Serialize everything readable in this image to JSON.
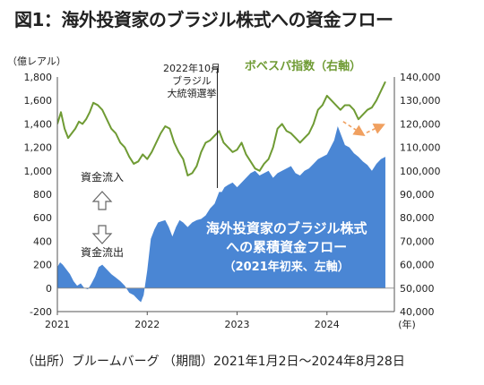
{
  "title": "図1：海外投資家のブラジル株式への資金フロー",
  "source_note": "（出所）ブルームバーグ （期間）2021年1月2日～2024年8月28日",
  "colors": {
    "area": "#4a86d4",
    "line": "#6f9b34",
    "bovespa_label": "#6f9b34",
    "arrow": "#f0a060",
    "area_text": "#ffffff"
  },
  "chart_data": {
    "type": "area",
    "title": "図1：海外投資家のブラジル株式への資金フロー",
    "xlabel": "(年)",
    "x_ticks": [
      "2021",
      "2022",
      "2023",
      "2024"
    ],
    "x_range": [
      2021.0,
      2024.75
    ],
    "left_axis": {
      "unit_label": "（億レアル）",
      "range": [
        -200,
        1800
      ],
      "ticks": [
        "-200",
        "0",
        "200",
        "400",
        "600",
        "800",
        "1,000",
        "1,200",
        "1,400",
        "1,600",
        "1,800"
      ]
    },
    "right_axis": {
      "range": [
        40000,
        140000
      ],
      "ticks": [
        "40,000",
        "50,000",
        "60,000",
        "70,000",
        "80,000",
        "90,000",
        "100,000",
        "110,000",
        "120,000",
        "130,000",
        "140,000"
      ]
    },
    "grid": false,
    "series": [
      {
        "name": "海外投資家のブラジル株式への累積資金フロー（2021年初来、左軸）",
        "axis": "left",
        "style": "area",
        "label_lines": [
          "海外投資家のブラジル株式",
          "への累積資金フロー",
          "（2021年初来、左軸）"
        ],
        "x": [
          2021.0,
          2021.03,
          2021.06,
          2021.1,
          2021.14,
          2021.18,
          2021.22,
          2021.26,
          2021.3,
          2021.34,
          2021.38,
          2021.42,
          2021.46,
          2021.5,
          2021.55,
          2021.6,
          2021.65,
          2021.7,
          2021.75,
          2021.8,
          2021.85,
          2021.9,
          2021.93,
          2021.96,
          2022.0,
          2022.04,
          2022.08,
          2022.12,
          2022.16,
          2022.2,
          2022.24,
          2022.28,
          2022.32,
          2022.36,
          2022.4,
          2022.45,
          2022.5,
          2022.55,
          2022.6,
          2022.65,
          2022.7,
          2022.75,
          2022.8,
          2022.83,
          2022.86,
          2022.9,
          2022.95,
          2023.0,
          2023.05,
          2023.1,
          2023.15,
          2023.2,
          2023.25,
          2023.3,
          2023.35,
          2023.4,
          2023.45,
          2023.5,
          2023.55,
          2023.6,
          2023.65,
          2023.7,
          2023.75,
          2023.8,
          2023.85,
          2023.9,
          2023.95,
          2024.0,
          2024.04,
          2024.08,
          2024.12,
          2024.16,
          2024.2,
          2024.25,
          2024.3,
          2024.35,
          2024.4,
          2024.45,
          2024.5,
          2024.55,
          2024.6,
          2024.65
        ],
        "values": [
          180,
          220,
          200,
          160,
          120,
          60,
          20,
          40,
          0,
          -10,
          40,
          100,
          180,
          200,
          160,
          120,
          90,
          60,
          20,
          -40,
          -60,
          -100,
          -120,
          -60,
          150,
          420,
          500,
          560,
          570,
          580,
          520,
          440,
          520,
          580,
          560,
          520,
          560,
          580,
          590,
          620,
          680,
          720,
          820,
          820,
          860,
          880,
          900,
          860,
          900,
          940,
          980,
          1000,
          960,
          980,
          1000,
          940,
          980,
          1000,
          1020,
          1040,
          980,
          960,
          1000,
          1020,
          1060,
          1100,
          1120,
          1140,
          1200,
          1260,
          1380,
          1300,
          1220,
          1200,
          1150,
          1120,
          1080,
          1050,
          1000,
          1060,
          1100,
          1120
        ]
      },
      {
        "name": "ボベスパ指数（右軸）",
        "axis": "right",
        "style": "line",
        "x": [
          2021.0,
          2021.04,
          2021.08,
          2021.12,
          2021.16,
          2021.2,
          2021.24,
          2021.28,
          2021.32,
          2021.36,
          2021.4,
          2021.45,
          2021.5,
          2021.55,
          2021.6,
          2021.65,
          2021.7,
          2021.75,
          2021.8,
          2021.85,
          2021.9,
          2021.95,
          2022.0,
          2022.05,
          2022.1,
          2022.15,
          2022.2,
          2022.25,
          2022.3,
          2022.35,
          2022.4,
          2022.45,
          2022.5,
          2022.55,
          2022.6,
          2022.65,
          2022.7,
          2022.75,
          2022.8,
          2022.85,
          2022.9,
          2022.95,
          2023.0,
          2023.05,
          2023.1,
          2023.15,
          2023.2,
          2023.25,
          2023.3,
          2023.35,
          2023.4,
          2023.45,
          2023.5,
          2023.55,
          2023.6,
          2023.65,
          2023.7,
          2023.75,
          2023.8,
          2023.85,
          2023.9,
          2023.95,
          2024.0,
          2024.05,
          2024.1,
          2024.15,
          2024.2,
          2024.25,
          2024.3,
          2024.35,
          2024.4,
          2024.45,
          2024.5,
          2024.55,
          2024.6,
          2024.65
        ],
        "values": [
          120000,
          125000,
          118000,
          114000,
          116000,
          118000,
          121000,
          120000,
          122000,
          125000,
          129000,
          128000,
          126000,
          122000,
          118000,
          116000,
          112000,
          110000,
          106000,
          103000,
          104000,
          107000,
          105000,
          108000,
          112000,
          116000,
          119000,
          118000,
          112000,
          108000,
          105000,
          98000,
          99000,
          102000,
          108000,
          112000,
          113000,
          115000,
          117000,
          112000,
          110000,
          108000,
          109000,
          112000,
          107000,
          104000,
          101000,
          100000,
          103000,
          105000,
          110000,
          118000,
          120000,
          117000,
          116000,
          114000,
          112000,
          114000,
          116000,
          120000,
          126000,
          128000,
          132000,
          130000,
          128000,
          126000,
          128000,
          128000,
          126000,
          122000,
          124000,
          126000,
          127000,
          130000,
          134000,
          138000
        ]
      }
    ],
    "annotations": [
      {
        "kind": "election",
        "lines": [
          "2022年10月",
          "ブラジル",
          "大統領選挙"
        ],
        "x": 2022.78
      },
      {
        "kind": "legend-label",
        "text": "ボベスパ指数（右軸）"
      },
      {
        "kind": "inflow",
        "text": "資金流入"
      },
      {
        "kind": "outflow",
        "text": "資金流出"
      },
      {
        "kind": "trend-arrows",
        "x": [
          2024.18,
          2024.4,
          2024.62
        ],
        "y": [
          1420,
          1310,
          1390
        ]
      }
    ]
  }
}
